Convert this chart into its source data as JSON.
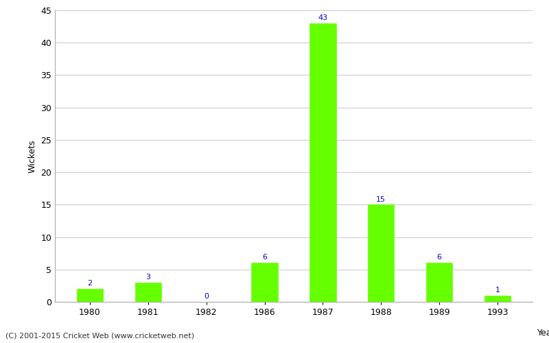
{
  "years": [
    "1980",
    "1981",
    "1982",
    "1986",
    "1987",
    "1988",
    "1989",
    "1993"
  ],
  "values": [
    2,
    3,
    0,
    6,
    43,
    15,
    6,
    1
  ],
  "bar_color": "#66ff00",
  "bar_edge_color": "#66ff00",
  "label_color": "#0000cc",
  "ylabel": "Wickets",
  "xlabel_corner": "Year",
  "ylim": [
    0,
    45
  ],
  "yticks": [
    0,
    5,
    10,
    15,
    20,
    25,
    30,
    35,
    40,
    45
  ],
  "background_color": "#ffffff",
  "grid_color": "#cccccc",
  "footer_text": "(C) 2001-2015 Cricket Web (www.cricketweb.net)",
  "label_fontsize": 8,
  "axis_label_fontsize": 9,
  "tick_fontsize": 9,
  "footer_fontsize": 8
}
